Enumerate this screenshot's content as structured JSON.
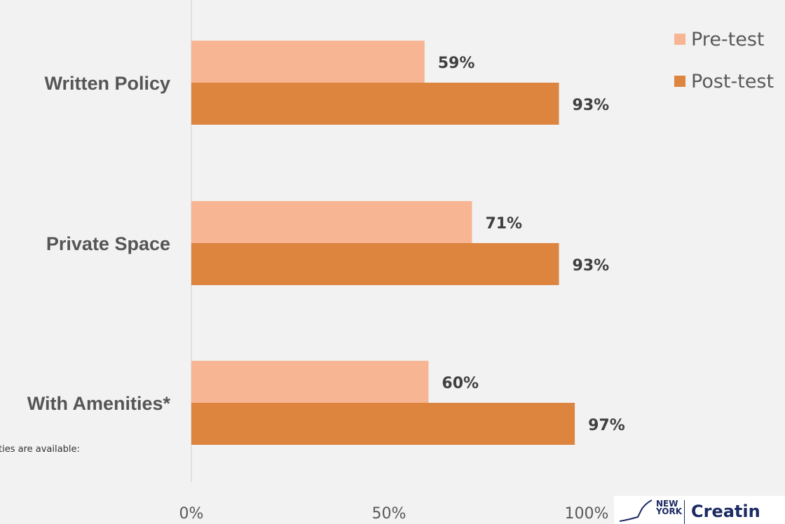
{
  "chart_data": {
    "type": "bar",
    "orientation": "horizontal",
    "categories": [
      "Written Policy",
      "Private Space",
      "With Amenities*"
    ],
    "series": [
      {
        "name": "Pre-test",
        "values": [
          59,
          71,
          60
        ],
        "labels": [
          "59%",
          "71%",
          "60%"
        ],
        "color": "#f8b593"
      },
      {
        "name": "Post-test",
        "values": [
          93,
          93,
          97
        ],
        "labels": [
          "93%",
          "93%",
          "97%"
        ],
        "color": "#dd853f"
      }
    ],
    "xlim": [
      0,
      100
    ],
    "xticks": [
      "0%",
      "50%",
      "100%"
    ],
    "legend": "top-right",
    "grid": false
  },
  "footnote": "ties are available:",
  "logo": {
    "ny_line1": "NEW",
    "ny_line2": "YORK",
    "text": "Creatin"
  }
}
